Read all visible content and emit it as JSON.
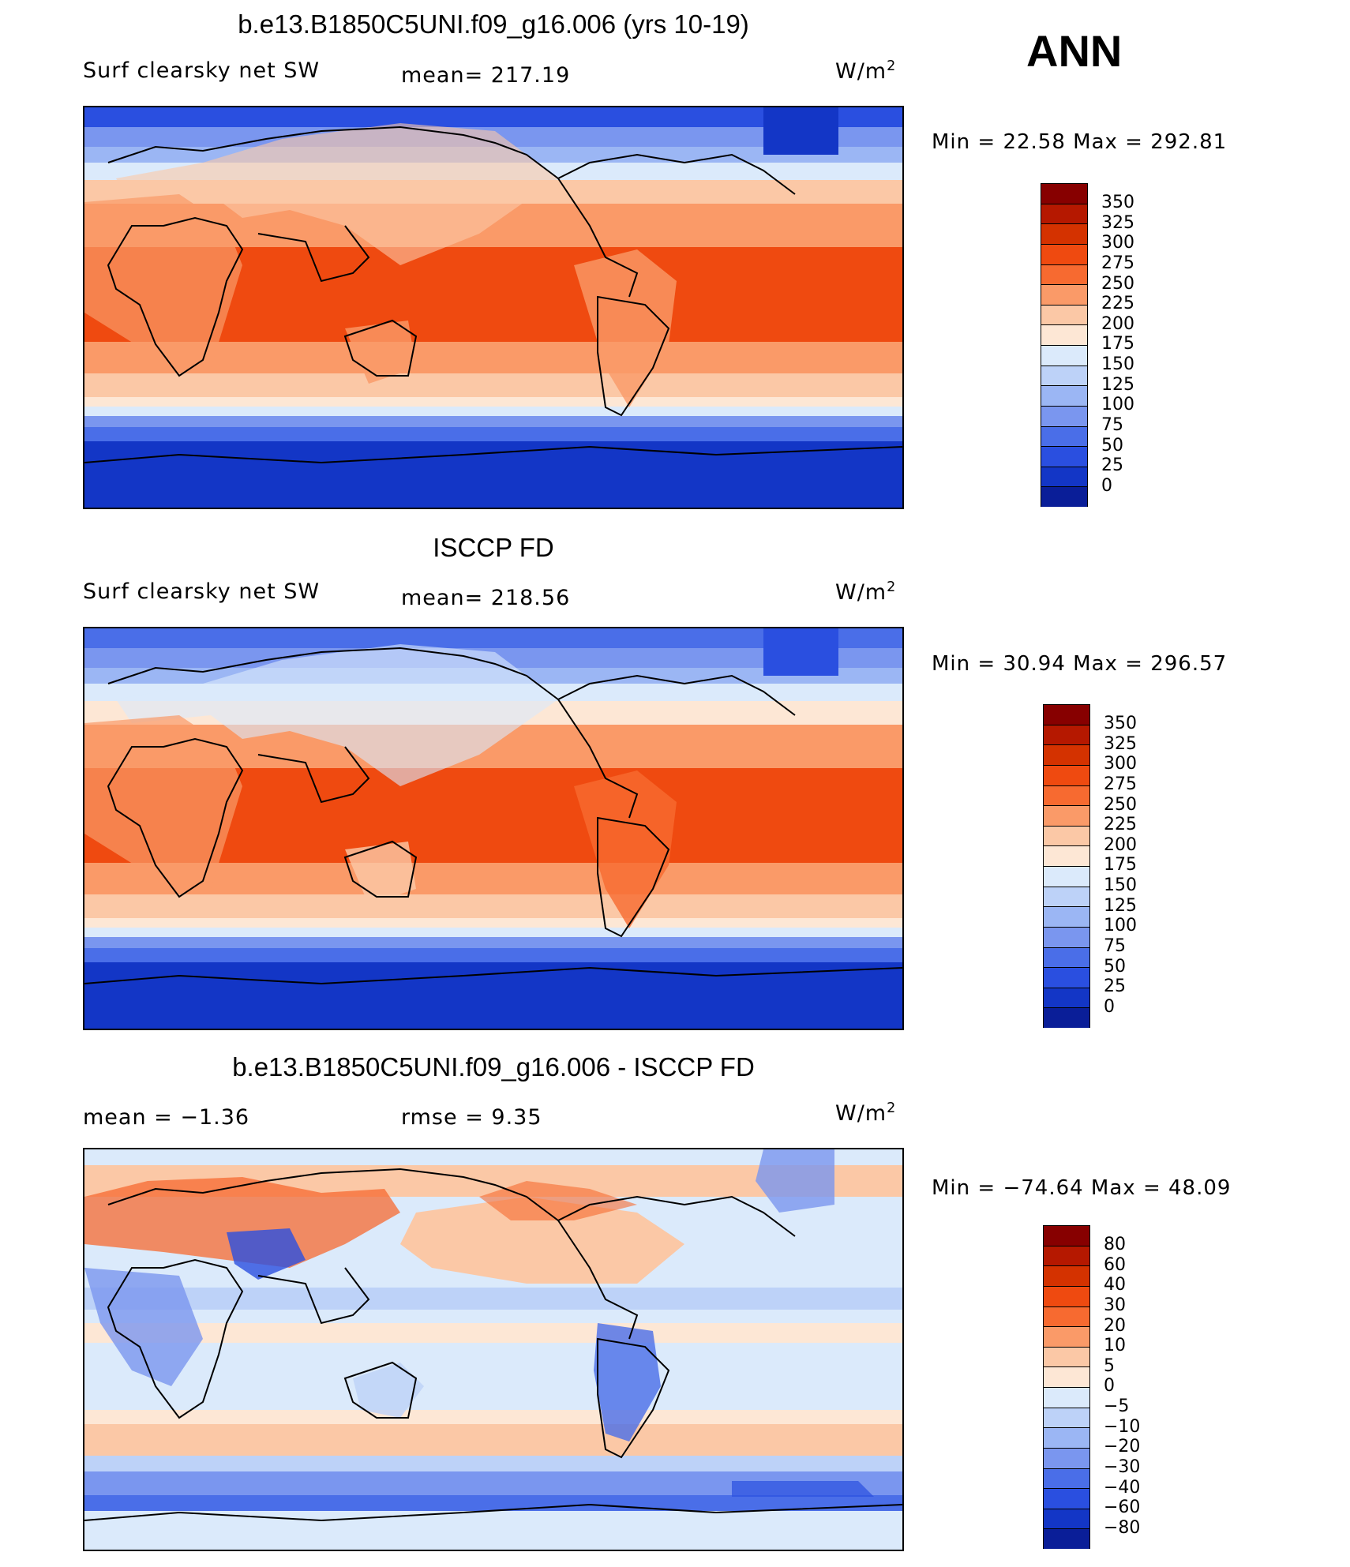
{
  "season": "ANN",
  "panels": [
    {
      "title": "b.e13.B1850C5UNI.f09_g16.006 (yrs 10-19)",
      "left_label": "Surf clearsky net SW",
      "center_label": "mean= 217.19",
      "units": "W/m",
      "units_sup": "2",
      "minmax": "Min =   22.58 Max =  292.81",
      "colorbar": {
        "labels": [
          "350",
          "325",
          "300",
          "275",
          "250",
          "225",
          "200",
          "175",
          "150",
          "125",
          "100",
          "75",
          "50",
          "25",
          "0"
        ],
        "colors": [
          "#870000",
          "#b51800",
          "#d43200",
          "#ef4a10",
          "#f76a30",
          "#fa9a68",
          "#fbc8a6",
          "#fde7d5",
          "#dbeafb",
          "#bdd2f8",
          "#9bb6f4",
          "#7a96ef",
          "#4a6ee8",
          "#2a4fe0",
          "#1336c6",
          "#0a1e98"
        ]
      }
    },
    {
      "title": "ISCCP FD",
      "left_label": "Surf clearsky net SW",
      "center_label": "mean= 218.56",
      "units": "W/m",
      "units_sup": "2",
      "minmax": "Min =   30.94 Max =  296.57",
      "colorbar": {
        "labels": [
          "350",
          "325",
          "300",
          "275",
          "250",
          "225",
          "200",
          "175",
          "150",
          "125",
          "100",
          "75",
          "50",
          "25",
          "0"
        ],
        "colors": [
          "#870000",
          "#b51800",
          "#d43200",
          "#ef4a10",
          "#f76a30",
          "#fa9a68",
          "#fbc8a6",
          "#fde7d5",
          "#dbeafb",
          "#bdd2f8",
          "#9bb6f4",
          "#7a96ef",
          "#4a6ee8",
          "#2a4fe0",
          "#1336c6",
          "#0a1e98"
        ]
      }
    },
    {
      "title": "b.e13.B1850C5UNI.f09_g16.006 - ISCCP FD",
      "left_label": "mean =   −1.36",
      "center_label": "rmse =    9.35",
      "units": "W/m",
      "units_sup": "2",
      "minmax": "Min = −74.64 Max =   48.09",
      "colorbar": {
        "labels": [
          "80",
          "60",
          "40",
          "30",
          "20",
          "10",
          "5",
          "0",
          "−5",
          "−10",
          "−20",
          "−30",
          "−40",
          "−60",
          "−80"
        ],
        "colors": [
          "#870000",
          "#b51800",
          "#d43200",
          "#ef4a10",
          "#f76a30",
          "#fa9a68",
          "#fbc8a6",
          "#fde7d5",
          "#dbeafb",
          "#bdd2f8",
          "#9bb6f4",
          "#7a96ef",
          "#4a6ee8",
          "#2a4fe0",
          "#1336c6",
          "#0a1e98"
        ]
      }
    }
  ]
}
